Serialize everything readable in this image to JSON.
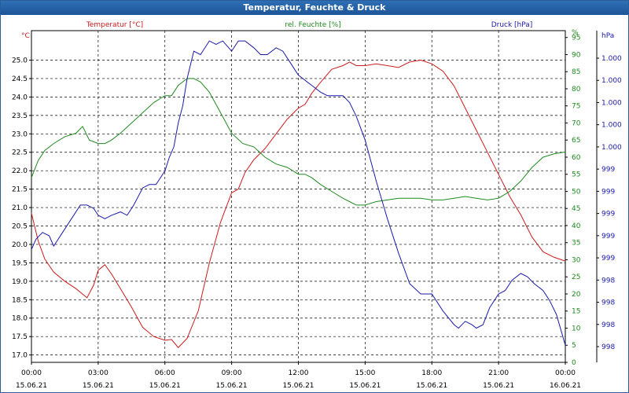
{
  "window": {
    "title": "Temperatur, Feuchte & Druck"
  },
  "colors": {
    "temperature": "#cc1b1b",
    "humidity": "#1e8a1e",
    "pressure": "#1a1aaa",
    "grid": "#000000",
    "axis": "#000000",
    "title_bg": "#1d5597"
  },
  "chart_data": {
    "type": "line",
    "title": "Temperatur, Feuchte & Druck",
    "grid": true,
    "x_ticks": [
      {
        "time": "00:00",
        "date": "15.06.21"
      },
      {
        "time": "03:00",
        "date": "15.06.21"
      },
      {
        "time": "06:00",
        "date": "15.06.21"
      },
      {
        "time": "09:00",
        "date": "15.06.21"
      },
      {
        "time": "12:00",
        "date": "15.06.21"
      },
      {
        "time": "15:00",
        "date": "15.06.21"
      },
      {
        "time": "18:00",
        "date": "15.06.21"
      },
      {
        "time": "21:00",
        "date": "15.06.21"
      },
      {
        "time": "00:00",
        "date": "16.06.21"
      }
    ],
    "xlim": [
      0,
      24
    ],
    "axes": {
      "temperature": {
        "unit": "°C",
        "label": "Temperatur [°C]",
        "ylim": [
          16.8,
          25.8
        ],
        "ticks": [
          "17.0",
          "17.5",
          "18.0",
          "18.5",
          "19.0",
          "19.5",
          "20.0",
          "20.5",
          "21.0",
          "21.5",
          "22.0",
          "22.5",
          "23.0",
          "23.5",
          "24.0",
          "24.5",
          "25.0"
        ]
      },
      "humidity": {
        "unit": "%",
        "label": "rel. Feuchte [%]",
        "ylim": [
          0,
          97
        ],
        "ticks": [
          "0",
          "5",
          "10",
          "15",
          "20",
          "25",
          "30",
          "35",
          "40",
          "45",
          "50",
          "55",
          "60",
          "65",
          "70",
          "75",
          "80",
          "85",
          "90",
          "95",
          "%"
        ]
      },
      "pressure": {
        "unit": "hPa",
        "label": "Druck [hPa]",
        "ticks": [
          "998",
          "998",
          "998",
          "998",
          "999",
          "999",
          "999",
          "999",
          "999",
          "1.000",
          "1.000",
          "1.000",
          "1.000",
          "1.000"
        ]
      }
    },
    "series": [
      {
        "name": "Temperatur [°C]",
        "axis": "temperature",
        "x": [
          0,
          0.3,
          0.6,
          1,
          1.5,
          2,
          2.5,
          2.8,
          3,
          3.3,
          3.6,
          4,
          4.5,
          5,
          5.5,
          6,
          6.3,
          6.6,
          7,
          7.5,
          8,
          8.5,
          9,
          9.3,
          9.6,
          10,
          10.5,
          11,
          11.5,
          12,
          12.3,
          12.6,
          13,
          13.5,
          14,
          14.3,
          14.6,
          15,
          15.5,
          16,
          16.5,
          17,
          17.5,
          18,
          18.5,
          19,
          19.5,
          20,
          20.5,
          21,
          21.5,
          22,
          22.5,
          23,
          23.5,
          24
        ],
        "values": [
          20.85,
          20.1,
          19.6,
          19.25,
          19.0,
          18.8,
          18.55,
          18.9,
          19.3,
          19.45,
          19.2,
          18.8,
          18.3,
          17.75,
          17.5,
          17.4,
          17.42,
          17.2,
          17.45,
          18.2,
          19.5,
          20.6,
          21.4,
          21.5,
          21.95,
          22.3,
          22.6,
          23.0,
          23.4,
          23.7,
          23.8,
          24.1,
          24.4,
          24.75,
          24.85,
          24.95,
          24.85,
          24.85,
          24.9,
          24.85,
          24.8,
          24.95,
          25.0,
          24.9,
          24.7,
          24.3,
          23.7,
          23.1,
          22.5,
          21.9,
          21.3,
          20.8,
          20.2,
          19.8,
          19.65,
          19.55
        ]
      },
      {
        "name": "rel. Feuchte [%]",
        "axis": "humidity",
        "x": [
          0,
          0.3,
          0.6,
          1,
          1.5,
          2,
          2.3,
          2.6,
          3,
          3.3,
          3.6,
          4,
          4.5,
          5,
          5.5,
          6,
          6.3,
          6.6,
          7,
          7.3,
          7.6,
          8,
          8.5,
          9,
          9.5,
          10,
          10.5,
          11,
          11.5,
          12,
          12.3,
          12.6,
          13,
          13.5,
          14,
          14.3,
          14.6,
          15,
          15.5,
          16,
          16.5,
          17,
          17.5,
          18,
          18.5,
          19,
          19.5,
          20,
          20.5,
          21,
          21.5,
          22,
          22.5,
          23,
          23.5,
          24
        ],
        "values": [
          54,
          59,
          62,
          64,
          66,
          67,
          69,
          65,
          64,
          64,
          65,
          67,
          70,
          73,
          76,
          78,
          78,
          81,
          83,
          83,
          82,
          79,
          73,
          67,
          64,
          63,
          60,
          58,
          57,
          55,
          55,
          54,
          52,
          50,
          48,
          47,
          46,
          46,
          47,
          47.5,
          48,
          48,
          48,
          47.5,
          47.5,
          48,
          48.5,
          48,
          47.5,
          48,
          50,
          53,
          57,
          60,
          61,
          61.5
        ]
      },
      {
        "name": "Druck [hPa]",
        "axis": "pressure",
        "x": [
          0,
          0.2,
          0.5,
          0.8,
          1,
          1.4,
          1.8,
          2.2,
          2.5,
          2.8,
          3,
          3.3,
          3.6,
          4,
          4.3,
          4.6,
          5,
          5.3,
          5.6,
          6,
          6.2,
          6.4,
          6.6,
          6.8,
          7,
          7.3,
          7.6,
          8,
          8.3,
          8.6,
          9,
          9.3,
          9.6,
          10,
          10.3,
          10.6,
          11,
          11.3,
          11.6,
          12,
          12.2,
          12.4,
          12.6,
          13,
          13.3,
          13.6,
          14,
          14.3,
          14.6,
          15,
          15.5,
          16,
          16.5,
          17,
          17.5,
          18,
          18.5,
          19,
          19.2,
          19.5,
          19.8,
          20,
          20.3,
          20.6,
          21,
          21.3,
          21.6,
          22,
          22.3,
          22.6,
          23,
          23.3,
          23.6,
          24
        ],
        "values": [
          33,
          36,
          38,
          37,
          34,
          38,
          42,
          46,
          46,
          45,
          43,
          42,
          43,
          44,
          43,
          46,
          51,
          52,
          52,
          56,
          60,
          63,
          70,
          75,
          83,
          91,
          90,
          94,
          93,
          94,
          91,
          94,
          94,
          92,
          90,
          90,
          92,
          91,
          88,
          84,
          83,
          82,
          81,
          79,
          78,
          78,
          78,
          76,
          72,
          65,
          53,
          42,
          32,
          23,
          20,
          20,
          15,
          11,
          10,
          12,
          11,
          10,
          11,
          16,
          20,
          21,
          24,
          26,
          25,
          23,
          21,
          18,
          14,
          5
        ]
      }
    ]
  }
}
